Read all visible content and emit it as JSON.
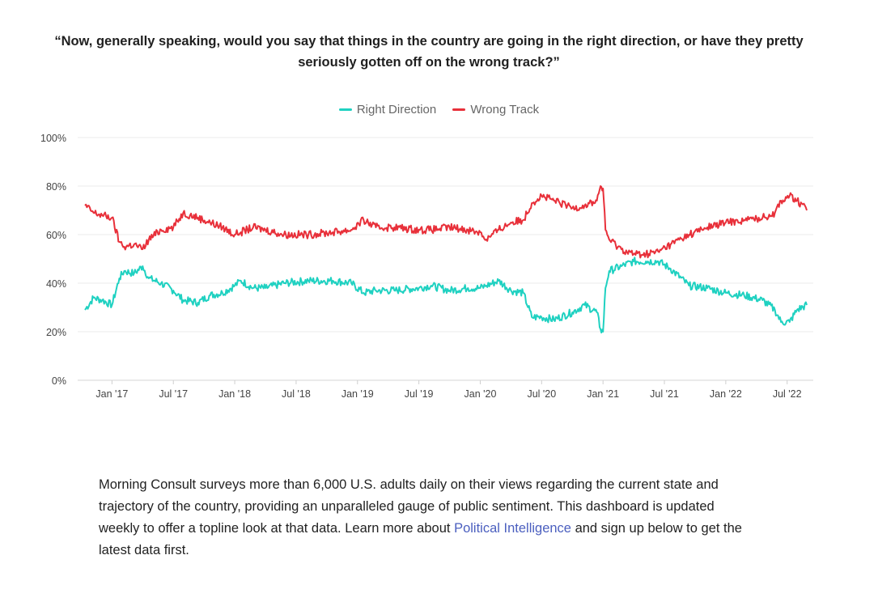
{
  "question": "“Now, generally speaking, would you say that things in the country are going in the right direction, or have they pretty seriously gotten off on the wrong track?”",
  "description": {
    "text_before": "Morning Consult surveys more than 6,000 U.S. adults daily on their views regarding the current state and trajectory of the country, providing an unparalleled gauge of public sentiment. This dashboard is updated weekly to offer a topline look at that data. Learn more about ",
    "link_text": "Political Intelligence",
    "text_after": " and sign up below to get the latest data first."
  },
  "chart_data": {
    "type": "line",
    "title": "“Now, generally speaking, would you say that things in the country are going in the right direction, or have they pretty seriously gotten off on the wrong track?”",
    "xlabel": "",
    "ylabel": "",
    "x_range": [
      2016.78,
      2022.66
    ],
    "ylim": [
      0,
      100
    ],
    "y_ticks": [
      0,
      20,
      40,
      60,
      80,
      100
    ],
    "y_tick_labels": [
      "0%",
      "20%",
      "40%",
      "60%",
      "80%",
      "100%"
    ],
    "x_ticks": [
      2017.0,
      2017.5,
      2018.0,
      2018.5,
      2019.0,
      2019.5,
      2020.0,
      2020.5,
      2021.0,
      2021.5,
      2022.0,
      2022.5
    ],
    "x_tick_labels": [
      "Jan '17",
      "Jul '17",
      "Jan '18",
      "Jul '18",
      "Jan '19",
      "Jul '19",
      "Jan '20",
      "Jul '20",
      "Jan '21",
      "Jul '21",
      "Jan '22",
      "Jul '22"
    ],
    "grid": true,
    "legend_position": "top-center",
    "series": [
      {
        "name": "Right Direction",
        "color": "#1fd1c1",
        "x": [
          2016.78,
          2016.85,
          2016.92,
          2017.0,
          2017.06,
          2017.1,
          2017.18,
          2017.25,
          2017.3,
          2017.4,
          2017.5,
          2017.58,
          2017.7,
          2017.8,
          2017.9,
          2018.0,
          2018.05,
          2018.15,
          2018.25,
          2018.4,
          2018.6,
          2018.8,
          2018.95,
          2019.05,
          2019.15,
          2019.3,
          2019.5,
          2019.6,
          2019.75,
          2019.9,
          2020.0,
          2020.05,
          2020.15,
          2020.25,
          2020.35,
          2020.42,
          2020.5,
          2020.6,
          2020.75,
          2020.85,
          2020.95,
          2020.98,
          2021.0,
          2021.02,
          2021.05,
          2021.15,
          2021.25,
          2021.35,
          2021.45,
          2021.55,
          2021.7,
          2021.85,
          2022.0,
          2022.15,
          2022.3,
          2022.4,
          2022.45,
          2022.52,
          2022.58,
          2022.66
        ],
        "values": [
          29,
          34,
          33,
          31,
          42,
          45,
          44,
          47,
          42,
          40,
          37,
          33,
          32,
          35,
          36,
          39,
          41,
          38,
          38,
          40,
          41,
          41,
          40,
          36,
          37,
          37,
          38,
          39,
          37,
          38,
          38,
          39,
          41,
          37,
          36,
          26,
          26,
          25,
          28,
          31,
          28,
          21,
          20,
          38,
          45,
          47,
          49,
          49,
          49,
          46,
          39,
          38,
          36,
          35,
          33,
          29,
          24,
          24,
          29,
          31
        ]
      },
      {
        "name": "Wrong Track",
        "color": "#e8303a",
        "x": [
          2016.78,
          2016.85,
          2016.92,
          2017.0,
          2017.06,
          2017.1,
          2017.18,
          2017.25,
          2017.3,
          2017.4,
          2017.5,
          2017.58,
          2017.7,
          2017.8,
          2017.9,
          2018.0,
          2018.05,
          2018.15,
          2018.25,
          2018.4,
          2018.6,
          2018.8,
          2018.95,
          2019.05,
          2019.15,
          2019.3,
          2019.5,
          2019.6,
          2019.75,
          2019.9,
          2020.0,
          2020.05,
          2020.15,
          2020.25,
          2020.35,
          2020.42,
          2020.5,
          2020.6,
          2020.75,
          2020.85,
          2020.95,
          2020.98,
          2021.0,
          2021.02,
          2021.05,
          2021.15,
          2021.25,
          2021.35,
          2021.45,
          2021.55,
          2021.7,
          2021.85,
          2022.0,
          2022.15,
          2022.3,
          2022.4,
          2022.45,
          2022.52,
          2022.58,
          2022.66
        ],
        "values": [
          72,
          69,
          68,
          67,
          57,
          55,
          56,
          54,
          58,
          62,
          63,
          69,
          67,
          65,
          63,
          60,
          61,
          63,
          62,
          60,
          60,
          61,
          62,
          66,
          63,
          63,
          62,
          62,
          63,
          62,
          61,
          58,
          62,
          65,
          66,
          73,
          76,
          74,
          71,
          72,
          74,
          80,
          79,
          62,
          58,
          54,
          52,
          52,
          53,
          56,
          60,
          63,
          65,
          66,
          67,
          69,
          74,
          76,
          74,
          70
        ]
      }
    ]
  }
}
